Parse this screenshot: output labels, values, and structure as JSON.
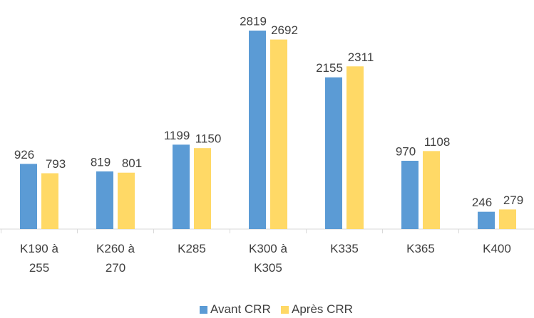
{
  "chart_data": {
    "type": "bar",
    "categories": [
      "K190 à 255",
      "K260 à 270",
      "K285",
      "K300 à K305",
      "K335",
      "K365",
      "K400"
    ],
    "series": [
      {
        "name": "Avant CRR",
        "color": "#5b9bd5",
        "values": [
          926,
          819,
          1199,
          2819,
          2155,
          970,
          246
        ]
      },
      {
        "name": "Après CRR",
        "color": "#ffd966",
        "values": [
          793,
          801,
          1150,
          2692,
          2311,
          1108,
          279
        ]
      }
    ]
  }
}
